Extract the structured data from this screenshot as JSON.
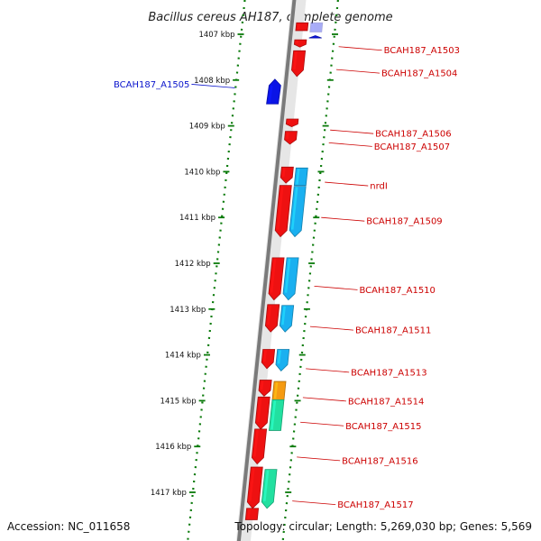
{
  "title": "Bacillus cereus AH187, complete genome",
  "footer": {
    "accession": "Accession: NC_011658",
    "summary": "Topology: circular; Length: 5,269,030 bp; Genes: 5,569"
  },
  "colors": {
    "backbone": "#7a7a7a",
    "ruler": "#0a7a0a",
    "gene_red": "#ee1111",
    "gene_blue": "#0a14e6",
    "gene_cyan": "#1ab0f0",
    "gene_orange": "#f59a10",
    "gene_green": "#22e0a0",
    "label_red": "#cc0000",
    "label_blue": "#0a14cc"
  },
  "ticks": [
    {
      "kbp": 1407,
      "label": "1407 kbp"
    },
    {
      "kbp": 1408,
      "label": "1408 kbp"
    },
    {
      "kbp": 1409,
      "label": "1409 kbp"
    },
    {
      "kbp": 1410,
      "label": "1410 kbp"
    },
    {
      "kbp": 1411,
      "label": "1411 kbp"
    },
    {
      "kbp": 1412,
      "label": "1412 kbp"
    },
    {
      "kbp": 1413,
      "label": "1413 kbp"
    },
    {
      "kbp": 1414,
      "label": "1414 kbp"
    },
    {
      "kbp": 1415,
      "label": "1415 kbp"
    },
    {
      "kbp": 1416,
      "label": "1416 kbp"
    },
    {
      "kbp": 1417,
      "label": "1417 kbp"
    }
  ],
  "genes": [
    {
      "start": 1406.75,
      "end": 1406.92,
      "strand": 1,
      "lane": 0,
      "color": "gene_red",
      "arrow": false
    },
    {
      "start": 1406.75,
      "end": 1406.95,
      "strand": -1,
      "lane": 1,
      "color": "gene_blue",
      "arrow": false,
      "faded": true
    },
    {
      "start": 1407.03,
      "end": 1407.08,
      "strand": -1,
      "lane": 1,
      "color": "gene_blue",
      "arrow": "tri"
    },
    {
      "start": 1407.12,
      "end": 1407.28,
      "strand": 1,
      "lane": 0,
      "color": "gene_red"
    },
    {
      "start": 1407.36,
      "end": 1407.92,
      "strand": 1,
      "lane": 0,
      "color": "gene_red"
    },
    {
      "start": 1407.98,
      "end": 1408.52,
      "strand": -1,
      "lane": 0,
      "color": "gene_blue",
      "reverse": true
    },
    {
      "start": 1408.85,
      "end": 1409.02,
      "strand": 1,
      "lane": 0,
      "color": "gene_red"
    },
    {
      "start": 1409.12,
      "end": 1409.4,
      "strand": 1,
      "lane": 0,
      "color": "gene_red"
    },
    {
      "start": 1409.9,
      "end": 1410.25,
      "strand": 1,
      "lane": 0,
      "color": "gene_red"
    },
    {
      "start": 1409.92,
      "end": 1410.3,
      "strand": 1,
      "lane": 1,
      "color": "gene_cyan",
      "arrow": false
    },
    {
      "start": 1410.3,
      "end": 1411.42,
      "strand": 1,
      "lane": 0,
      "color": "gene_red"
    },
    {
      "start": 1410.32,
      "end": 1411.42,
      "strand": 1,
      "lane": 1,
      "color": "gene_cyan"
    },
    {
      "start": 1411.88,
      "end": 1412.8,
      "strand": 1,
      "lane": 0,
      "color": "gene_red"
    },
    {
      "start": 1411.88,
      "end": 1412.8,
      "strand": 1,
      "lane": 1,
      "color": "gene_cyan"
    },
    {
      "start": 1412.9,
      "end": 1413.5,
      "strand": 1,
      "lane": 0,
      "color": "gene_red"
    },
    {
      "start": 1412.92,
      "end": 1413.5,
      "strand": 1,
      "lane": 1,
      "color": "gene_cyan"
    },
    {
      "start": 1413.88,
      "end": 1414.3,
      "strand": 1,
      "lane": 0,
      "color": "gene_red"
    },
    {
      "start": 1413.88,
      "end": 1414.35,
      "strand": 1,
      "lane": 1,
      "color": "gene_cyan"
    },
    {
      "start": 1414.55,
      "end": 1414.9,
      "strand": 1,
      "lane": 0,
      "color": "gene_red"
    },
    {
      "start": 1414.58,
      "end": 1414.98,
      "strand": 1,
      "lane": 1,
      "color": "gene_orange",
      "arrow": false
    },
    {
      "start": 1414.92,
      "end": 1415.62,
      "strand": 1,
      "lane": 0,
      "color": "gene_red"
    },
    {
      "start": 1414.98,
      "end": 1415.65,
      "strand": 1,
      "lane": 1,
      "color": "gene_green",
      "arrow": false
    },
    {
      "start": 1415.62,
      "end": 1416.38,
      "strand": 1,
      "lane": 0,
      "color": "gene_red"
    },
    {
      "start": 1416.45,
      "end": 1417.35,
      "strand": 1,
      "lane": 0,
      "color": "gene_red"
    },
    {
      "start": 1416.5,
      "end": 1417.35,
      "strand": 1,
      "lane": 1,
      "color": "gene_green"
    },
    {
      "start": 1417.35,
      "end": 1417.6,
      "strand": 1,
      "lane": 0,
      "color": "gene_red",
      "arrow": false
    }
  ],
  "labels": [
    {
      "text": "BCAH187_A1503",
      "kbp": 1407.27,
      "side": "right",
      "color": "label_red"
    },
    {
      "text": "BCAH187_A1504",
      "kbp": 1407.77,
      "side": "right",
      "color": "label_red"
    },
    {
      "text": "BCAH187_A1505",
      "kbp": 1408.17,
      "side": "left",
      "color": "label_blue"
    },
    {
      "text": "BCAH187_A1506",
      "kbp": 1409.09,
      "side": "right",
      "color": "label_red"
    },
    {
      "text": "BCAH187_A1507",
      "kbp": 1409.37,
      "side": "right",
      "color": "label_red"
    },
    {
      "text": "nrdI",
      "kbp": 1410.23,
      "side": "right",
      "color": "label_red"
    },
    {
      "text": "BCAH187_A1509",
      "kbp": 1411.0,
      "side": "right",
      "color": "label_red"
    },
    {
      "text": "BCAH187_A1510",
      "kbp": 1412.5,
      "side": "right",
      "color": "label_red"
    },
    {
      "text": "BCAH187_A1511",
      "kbp": 1413.38,
      "side": "right",
      "color": "label_red"
    },
    {
      "text": "BCAH187_A1513",
      "kbp": 1414.3,
      "side": "right",
      "color": "label_red"
    },
    {
      "text": "BCAH187_A1514",
      "kbp": 1414.93,
      "side": "right",
      "color": "label_red"
    },
    {
      "text": "BCAH187_A1515",
      "kbp": 1415.47,
      "side": "right",
      "color": "label_red"
    },
    {
      "text": "BCAH187_A1516",
      "kbp": 1416.23,
      "side": "right",
      "color": "label_red"
    },
    {
      "text": "BCAH187_A1517",
      "kbp": 1417.19,
      "side": "right",
      "color": "label_red"
    }
  ]
}
